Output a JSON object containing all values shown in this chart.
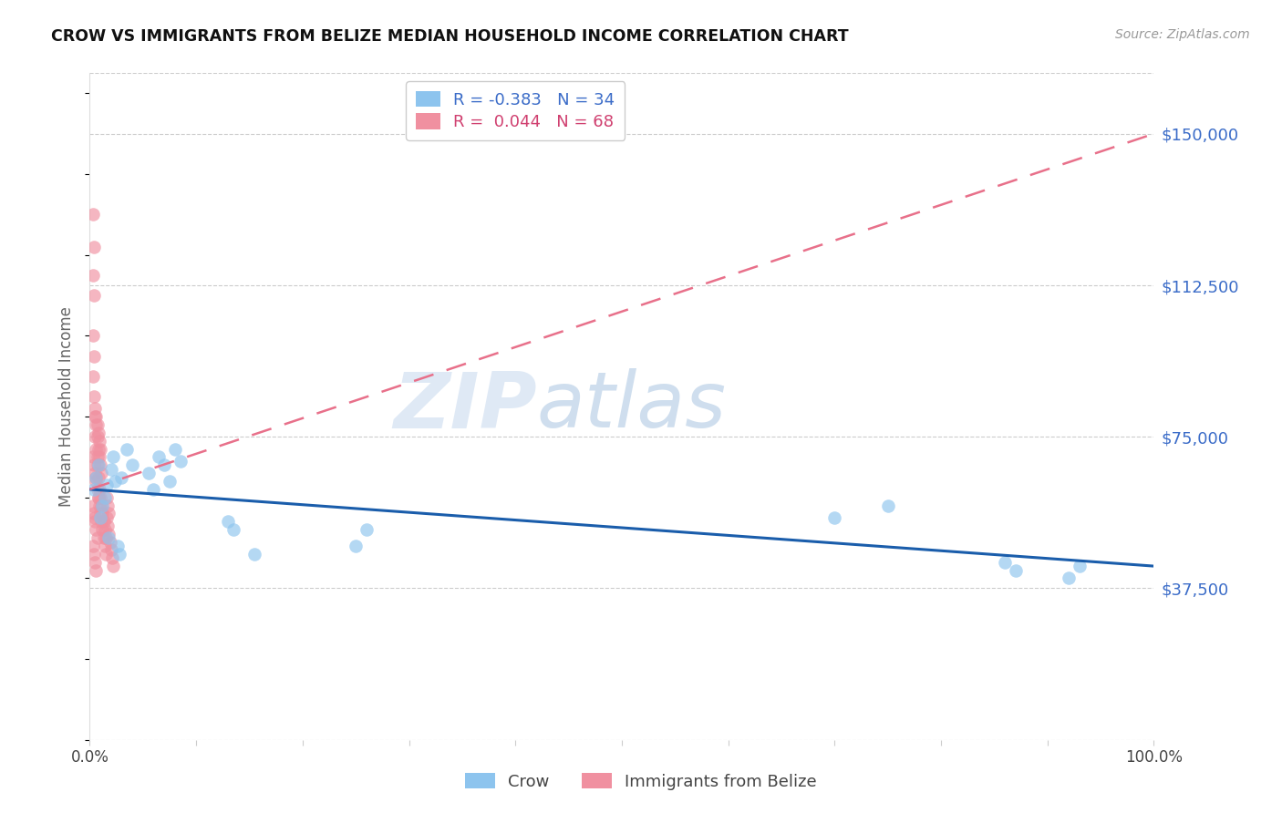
{
  "title": "CROW VS IMMIGRANTS FROM BELIZE MEDIAN HOUSEHOLD INCOME CORRELATION CHART",
  "source": "Source: ZipAtlas.com",
  "ylabel": "Median Household Income",
  "yticks": [
    0,
    37500,
    75000,
    112500,
    150000
  ],
  "ytick_labels": [
    "",
    "$37,500",
    "$75,000",
    "$112,500",
    "$150,000"
  ],
  "xlim": [
    0.0,
    1.0
  ],
  "ylim": [
    0,
    165000
  ],
  "watermark_zip": "ZIP",
  "watermark_atlas": "atlas",
  "crow_color": "#8DC4EE",
  "belize_color": "#F090A0",
  "crow_line_color": "#1A5DAB",
  "belize_line_color": "#E8708A",
  "legend_labels": [
    "Crow",
    "Immigrants from Belize"
  ],
  "crow_R": -0.383,
  "crow_N": 34,
  "belize_R": 0.044,
  "belize_N": 68,
  "crow_x": [
    0.004,
    0.006,
    0.008,
    0.01,
    0.012,
    0.014,
    0.016,
    0.018,
    0.02,
    0.022,
    0.024,
    0.026,
    0.028,
    0.03,
    0.035,
    0.04,
    0.055,
    0.06,
    0.065,
    0.07,
    0.075,
    0.08,
    0.085,
    0.13,
    0.135,
    0.155,
    0.25,
    0.26,
    0.7,
    0.75,
    0.86,
    0.87,
    0.92,
    0.93
  ],
  "crow_y": [
    62000,
    65000,
    68000,
    55000,
    58000,
    60000,
    63000,
    50000,
    67000,
    70000,
    64000,
    48000,
    46000,
    65000,
    72000,
    68000,
    66000,
    62000,
    70000,
    68000,
    64000,
    72000,
    69000,
    54000,
    52000,
    46000,
    48000,
    52000,
    55000,
    58000,
    44000,
    42000,
    40000,
    43000
  ],
  "belize_x": [
    0.003,
    0.004,
    0.005,
    0.006,
    0.007,
    0.008,
    0.009,
    0.01,
    0.011,
    0.012,
    0.013,
    0.014,
    0.015,
    0.016,
    0.017,
    0.018,
    0.019,
    0.02,
    0.021,
    0.022,
    0.003,
    0.004,
    0.005,
    0.006,
    0.007,
    0.008,
    0.009,
    0.01,
    0.011,
    0.012,
    0.013,
    0.014,
    0.015,
    0.016,
    0.017,
    0.018,
    0.003,
    0.004,
    0.005,
    0.006,
    0.007,
    0.008,
    0.009,
    0.01,
    0.011,
    0.003,
    0.004,
    0.005,
    0.006,
    0.007,
    0.008,
    0.009,
    0.01,
    0.003,
    0.004,
    0.005,
    0.006,
    0.007,
    0.008,
    0.003,
    0.004,
    0.005,
    0.006,
    0.007,
    0.003,
    0.004,
    0.005,
    0.006
  ],
  "belize_y": [
    130000,
    122000,
    55000,
    65000,
    70000,
    60000,
    58000,
    56000,
    54000,
    52000,
    50000,
    48000,
    46000,
    55000,
    53000,
    51000,
    49000,
    47000,
    45000,
    43000,
    115000,
    110000,
    75000,
    72000,
    68000,
    65000,
    62000,
    60000,
    58000,
    56000,
    54000,
    52000,
    50000,
    60000,
    58000,
    56000,
    100000,
    95000,
    80000,
    78000,
    75000,
    72000,
    70000,
    68000,
    66000,
    90000,
    85000,
    82000,
    80000,
    78000,
    76000,
    74000,
    72000,
    70000,
    68000,
    66000,
    64000,
    62000,
    60000,
    58000,
    56000,
    54000,
    52000,
    50000,
    48000,
    46000,
    44000,
    42000
  ]
}
